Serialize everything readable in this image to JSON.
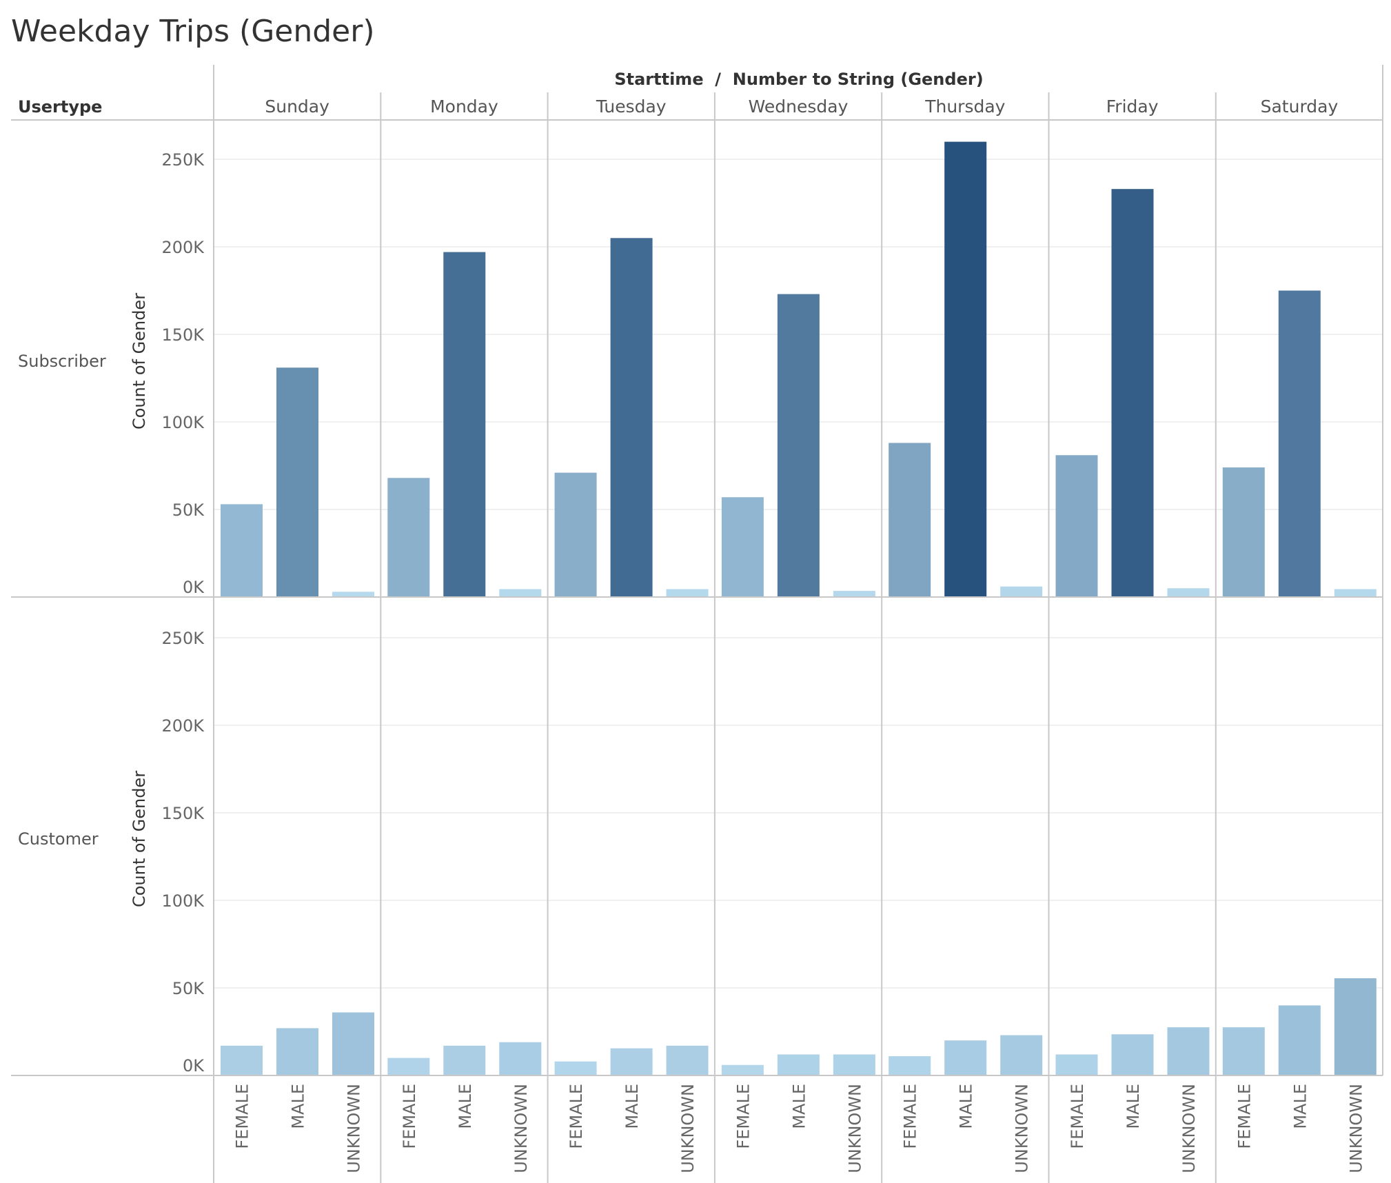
{
  "title": "Weekday Trips (Gender)",
  "column_header_title": "Starttime  /  Number to String (Gender)",
  "row_header_title": "Usertype",
  "axis_title": "Count of Gender",
  "colors": {
    "text": "#333333",
    "gridline": "#ececec",
    "divider": "#c8c8c8",
    "bar_light": "#b9dcf0",
    "bar_dark": "#27527e"
  },
  "chart_data": {
    "type": "bar",
    "title": "Weekday Trips (Gender)",
    "xlabel": "Starttime / Number to String (Gender)",
    "ylabel": "Count of Gender",
    "ylim": [
      0,
      270000
    ],
    "yticks": [
      0,
      50000,
      100000,
      150000,
      200000,
      250000
    ],
    "ytick_labels": [
      "0K",
      "50K",
      "100K",
      "150K",
      "200K",
      "250K"
    ],
    "grid": true,
    "days": [
      "Sunday",
      "Monday",
      "Tuesday",
      "Wednesday",
      "Thursday",
      "Friday",
      "Saturday"
    ],
    "genders": [
      "FEMALE",
      "MALE",
      "UNKNOWN"
    ],
    "panels": [
      {
        "usertype": "Subscriber",
        "values": [
          [
            53000,
            131000,
            3000
          ],
          [
            68000,
            197000,
            4500
          ],
          [
            71000,
            205000,
            4500
          ],
          [
            57000,
            173000,
            3500
          ],
          [
            88000,
            260000,
            6000
          ],
          [
            81000,
            233000,
            5000
          ],
          [
            74000,
            175000,
            4500
          ]
        ]
      },
      {
        "usertype": "Customer",
        "values": [
          [
            17000,
            27000,
            36000
          ],
          [
            10000,
            17000,
            19000
          ],
          [
            8000,
            15500,
            17000
          ],
          [
            6000,
            12000,
            12000
          ],
          [
            11000,
            20000,
            23000
          ],
          [
            12000,
            23500,
            27500
          ],
          [
            27500,
            40000,
            55500
          ]
        ]
      }
    ]
  }
}
